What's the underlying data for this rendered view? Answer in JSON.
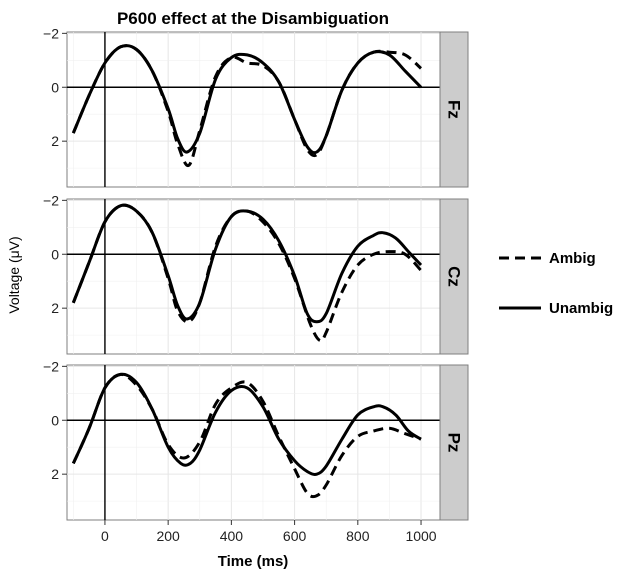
{
  "chart_data": {
    "type": "line",
    "title": "P600 effect at the Disambiguation",
    "xlabel": "Time (ms)",
    "ylabel": "Voltage (μV)",
    "xlim": [
      -120,
      1060
    ],
    "ylim_reversed": [
      -2.05,
      3.7
    ],
    "x_ticks": [
      0,
      200,
      400,
      600,
      800,
      1000
    ],
    "y_ticks": [
      {
        "value": -2,
        "label": "−2"
      },
      {
        "value": 0,
        "label": "0"
      },
      {
        "value": 2,
        "label": "2"
      }
    ],
    "grid": true,
    "y_axis_inverted": true,
    "legend_position": "right",
    "legend": [
      {
        "name": "Ambig",
        "dash": "dashed"
      },
      {
        "name": "Unambig",
        "dash": "solid"
      }
    ],
    "panels": [
      {
        "label": "Fz",
        "series": [
          {
            "name": "Ambig",
            "x": [
              -100,
              -50,
              0,
              50,
              100,
              150,
              200,
              230,
              265,
              300,
              350,
              400,
              450,
              500,
              550,
              600,
              640,
              670,
              700,
              750,
              800,
              850,
              900,
              950,
              1000
            ],
            "y": [
              1.7,
              0.3,
              -0.9,
              -1.5,
              -1.4,
              -0.6,
              0.9,
              2.1,
              2.9,
              1.6,
              -0.4,
              -1.1,
              -0.9,
              -0.8,
              -0.2,
              1.2,
              2.3,
              2.5,
              1.8,
              0.1,
              -0.9,
              -1.3,
              -1.3,
              -1.2,
              -0.7
            ]
          },
          {
            "name": "Unambig",
            "x": [
              -100,
              -50,
              0,
              50,
              100,
              150,
              200,
              230,
              260,
              300,
              350,
              400,
              450,
              500,
              550,
              600,
              640,
              670,
              700,
              750,
              800,
              850,
              900,
              950,
              1000
            ],
            "y": [
              1.7,
              0.3,
              -0.9,
              -1.5,
              -1.4,
              -0.6,
              0.8,
              1.9,
              2.4,
              1.7,
              -0.3,
              -1.1,
              -1.2,
              -0.9,
              -0.2,
              1.2,
              2.2,
              2.4,
              1.8,
              0.1,
              -0.9,
              -1.3,
              -1.2,
              -0.6,
              0.0
            ]
          }
        ]
      },
      {
        "label": "Cz",
        "series": [
          {
            "name": "Ambig",
            "x": [
              -100,
              -50,
              0,
              50,
              100,
              150,
              200,
              230,
              265,
              300,
              350,
              400,
              450,
              500,
              550,
              600,
              650,
              680,
              700,
              750,
              800,
              850,
              900,
              950,
              1000
            ],
            "y": [
              1.8,
              0.3,
              -1.2,
              -1.8,
              -1.6,
              -0.8,
              0.9,
              2.1,
              2.5,
              1.8,
              -0.3,
              -1.4,
              -1.6,
              -1.2,
              -0.4,
              0.9,
              2.6,
              3.2,
              2.9,
              1.4,
              0.4,
              0.0,
              -0.1,
              0.0,
              0.6
            ]
          },
          {
            "name": "Unambig",
            "x": [
              -100,
              -50,
              0,
              50,
              100,
              150,
              200,
              230,
              260,
              300,
              350,
              400,
              450,
              500,
              550,
              600,
              640,
              670,
              700,
              750,
              800,
              850,
              880,
              920,
              960,
              1000
            ],
            "y": [
              1.8,
              0.3,
              -1.2,
              -1.8,
              -1.6,
              -0.8,
              0.8,
              1.9,
              2.4,
              1.8,
              -0.2,
              -1.4,
              -1.6,
              -1.3,
              -0.5,
              0.8,
              2.2,
              2.5,
              2.2,
              0.7,
              -0.3,
              -0.7,
              -0.8,
              -0.6,
              -0.1,
              0.4
            ]
          }
        ]
      },
      {
        "label": "Pz",
        "series": [
          {
            "name": "Ambig",
            "x": [
              -100,
              -50,
              0,
              50,
              100,
              150,
              200,
              250,
              300,
              350,
              400,
              450,
              500,
              550,
              600,
              640,
              670,
              700,
              750,
              800,
              850,
              900,
              950,
              1000
            ],
            "y": [
              1.6,
              0.3,
              -1.2,
              -1.7,
              -1.3,
              -0.4,
              0.9,
              1.4,
              0.8,
              -0.6,
              -1.2,
              -1.4,
              -0.7,
              0.6,
              1.8,
              2.7,
              2.8,
              2.4,
              1.3,
              0.6,
              0.4,
              0.3,
              0.5,
              0.7
            ]
          },
          {
            "name": "Unambig",
            "x": [
              -100,
              -50,
              0,
              50,
              100,
              150,
              200,
              240,
              270,
              300,
              350,
              400,
              450,
              500,
              550,
              600,
              640,
              670,
              700,
              750,
              800,
              850,
              880,
              920,
              960,
              1000
            ],
            "y": [
              1.6,
              0.3,
              -1.2,
              -1.7,
              -1.4,
              -0.4,
              1.0,
              1.6,
              1.6,
              1.1,
              -0.3,
              -1.1,
              -1.2,
              -0.5,
              0.7,
              1.5,
              1.9,
              2.0,
              1.7,
              0.7,
              -0.2,
              -0.5,
              -0.5,
              -0.2,
              0.4,
              0.7
            ]
          }
        ]
      }
    ]
  }
}
